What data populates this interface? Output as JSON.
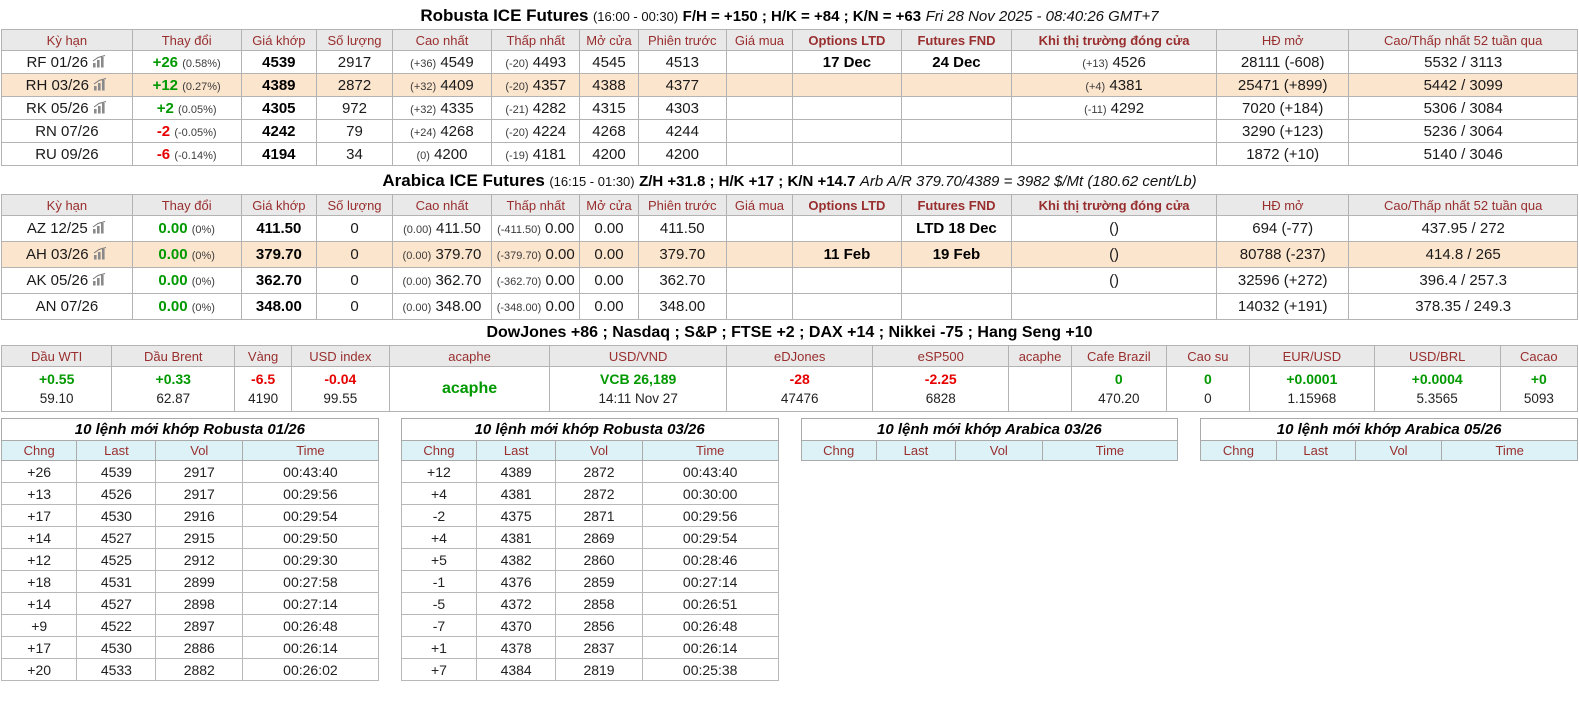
{
  "colors": {
    "positive": "#009900",
    "negative": "#e60000",
    "header_text": "#992e2e",
    "highlight_row": "#fce5cd",
    "trade_header_bg": "#dcf2f7"
  },
  "futures_columns": [
    "Kỳ hạn",
    "Thay đổi",
    "Giá khớp",
    "Số lượng",
    "Cao nhất",
    "Thấp nhất",
    "Mở cửa",
    "Phiên trước",
    "Giá mua",
    "Options LTD",
    "Futures FND",
    "Khi thị trường đóng cửa",
    "HĐ mở",
    "Cao/Thấp nhất 52 tuần qua"
  ],
  "robusta": {
    "title": "Robusta ICE Futures",
    "session": "(16:00 - 00:30)",
    "spread": "F/H = +150 ; H/K = +84 ; K/N = +63",
    "timestamp": "Fri 28 Nov 2025 - 08:40:26 GMT+7",
    "rows": [
      {
        "contract": "RF 01/26",
        "chart": true,
        "chg": "+26",
        "chg_dir": "up",
        "pct": "(0.58%)",
        "last": "4539",
        "vol": "2917",
        "high_d": "(+36)",
        "high": "4549",
        "low_d": "(-20)",
        "low": "4493",
        "open": "4545",
        "prev": "4513",
        "bid": "",
        "opt_ltd": "17 Dec",
        "fut_fnd": "24 Dec",
        "close_d": "(+13)",
        "close_v": "4526",
        "oi": "28111",
        "oi_d": "(-608)",
        "range": "5532 / 3113",
        "hl": false
      },
      {
        "contract": "RH 03/26",
        "chart": true,
        "chg": "+12",
        "chg_dir": "up",
        "pct": "(0.27%)",
        "last": "4389",
        "vol": "2872",
        "high_d": "(+32)",
        "high": "4409",
        "low_d": "(-20)",
        "low": "4357",
        "open": "4388",
        "prev": "4377",
        "bid": "",
        "opt_ltd": "",
        "fut_fnd": "",
        "close_d": "(+4)",
        "close_v": "4381",
        "oi": "25471",
        "oi_d": "(+899)",
        "range": "5442 / 3099",
        "hl": true
      },
      {
        "contract": "RK 05/26",
        "chart": true,
        "chg": "+2",
        "chg_dir": "up",
        "pct": "(0.05%)",
        "last": "4305",
        "vol": "972",
        "high_d": "(+32)",
        "high": "4335",
        "low_d": "(-21)",
        "low": "4282",
        "open": "4315",
        "prev": "4303",
        "bid": "",
        "opt_ltd": "",
        "fut_fnd": "",
        "close_d": "(-11)",
        "close_v": "4292",
        "oi": "7020",
        "oi_d": "(+184)",
        "range": "5306 / 3084",
        "hl": false
      },
      {
        "contract": "RN 07/26",
        "chart": false,
        "chg": "-2",
        "chg_dir": "down",
        "pct": "(-0.05%)",
        "last": "4242",
        "vol": "79",
        "high_d": "(+24)",
        "high": "4268",
        "low_d": "(-20)",
        "low": "4224",
        "open": "4268",
        "prev": "4244",
        "bid": "",
        "opt_ltd": "",
        "fut_fnd": "",
        "close_d": "",
        "close_v": "",
        "oi": "3290",
        "oi_d": "(+123)",
        "range": "5236 / 3064",
        "hl": false
      },
      {
        "contract": "RU 09/26",
        "chart": false,
        "chg": "-6",
        "chg_dir": "down",
        "pct": "(-0.14%)",
        "last": "4194",
        "vol": "34",
        "high_d": "(0)",
        "high": "4200",
        "low_d": "(-19)",
        "low": "4181",
        "open": "4200",
        "prev": "4200",
        "bid": "",
        "opt_ltd": "",
        "fut_fnd": "",
        "close_d": "",
        "close_v": "",
        "oi": "1872",
        "oi_d": "(+10)",
        "range": "5140 / 3046",
        "hl": false
      }
    ]
  },
  "arabica": {
    "title": "Arabica ICE Futures",
    "session": "(16:15 - 01:30)",
    "spread": "Z/H +31.8 ; H/K +17 ; K/N +14.7",
    "note": "Arb A/R 379.70/4389 = 3982 $/Mt (180.62 cent/Lb)",
    "rows": [
      {
        "contract": "AZ 12/25",
        "chart": true,
        "chg": "0.00",
        "chg_dir": "up",
        "pct": "(0%)",
        "last": "411.50",
        "vol": "0",
        "high_d": "(0.00)",
        "high": "411.50",
        "low_d": "(-411.50)",
        "low": "0.00",
        "open": "0.00",
        "prev": "411.50",
        "bid": "",
        "opt_ltd": "",
        "fut_fnd": "LTD 18 Dec",
        "close_d": "",
        "close_v": "()",
        "oi": "694",
        "oi_d": "(-77)",
        "range": "437.95 / 272",
        "hl": false
      },
      {
        "contract": "AH 03/26",
        "chart": true,
        "chg": "0.00",
        "chg_dir": "up",
        "pct": "(0%)",
        "last": "379.70",
        "vol": "0",
        "high_d": "(0.00)",
        "high": "379.70",
        "low_d": "(-379.70)",
        "low": "0.00",
        "open": "0.00",
        "prev": "379.70",
        "bid": "",
        "opt_ltd": "11 Feb",
        "fut_fnd": "19 Feb",
        "close_d": "",
        "close_v": "()",
        "oi": "80788",
        "oi_d": "(-237)",
        "range": "414.8 / 265",
        "hl": true
      },
      {
        "contract": "AK 05/26",
        "chart": true,
        "chg": "0.00",
        "chg_dir": "up",
        "pct": "(0%)",
        "last": "362.70",
        "vol": "0",
        "high_d": "(0.00)",
        "high": "362.70",
        "low_d": "(-362.70)",
        "low": "0.00",
        "open": "0.00",
        "prev": "362.70",
        "bid": "",
        "opt_ltd": "",
        "fut_fnd": "",
        "close_d": "",
        "close_v": "()",
        "oi": "32596",
        "oi_d": "(+272)",
        "range": "396.4 / 257.3",
        "hl": false
      },
      {
        "contract": "AN 07/26",
        "chart": false,
        "chg": "0.00",
        "chg_dir": "up",
        "pct": "(0%)",
        "last": "348.00",
        "vol": "0",
        "high_d": "(0.00)",
        "high": "348.00",
        "low_d": "(-348.00)",
        "low": "0.00",
        "open": "0.00",
        "prev": "348.00",
        "bid": "",
        "opt_ltd": "",
        "fut_fnd": "",
        "close_d": "",
        "close_v": "",
        "oi": "14032",
        "oi_d": "(+191)",
        "range": "378.35 / 249.3",
        "hl": false
      }
    ]
  },
  "world_indices": "DowJones +86 ; Nasdaq ; S&P ; FTSE +2 ; DAX +14 ; Nikkei -75 ; Hang Seng +10",
  "indicators": [
    {
      "label": "Dầu WTI",
      "chg": "+0.55",
      "dir": "up",
      "val": "59.10"
    },
    {
      "label": "Dầu Brent",
      "chg": "+0.33",
      "dir": "up",
      "val": "62.87"
    },
    {
      "label": "Vàng",
      "chg": "-6.5",
      "dir": "down",
      "val": "4190"
    },
    {
      "label": "USD index",
      "chg": "-0.04",
      "dir": "down",
      "val": "99.55"
    },
    {
      "label": "acaphe",
      "single": "acaphe",
      "dir": "up"
    },
    {
      "label": "USD/VND",
      "chg": "VCB 26,189",
      "dir": "up",
      "val": "14:11 Nov 27"
    },
    {
      "label": "eDJones",
      "chg": "-28",
      "dir": "down",
      "val": "47476"
    },
    {
      "label": "eSP500",
      "chg": "-2.25",
      "dir": "down",
      "val": "6828"
    },
    {
      "label": "acaphe",
      "chg": "",
      "dir": "up",
      "val": ""
    },
    {
      "label": "Cafe Brazil",
      "chg": "0",
      "dir": "up",
      "val": "470.20"
    },
    {
      "label": "Cao su",
      "chg": "0",
      "dir": "up",
      "val": "0"
    },
    {
      "label": "EUR/USD",
      "chg": "+0.0001",
      "dir": "up",
      "val": "1.15968"
    },
    {
      "label": "USD/BRL",
      "chg": "+0.0004",
      "dir": "up",
      "val": "5.3565"
    },
    {
      "label": "Cacao",
      "chg": "+0",
      "dir": "up",
      "val": "5093"
    }
  ],
  "trade_tables": [
    {
      "title": "10 lệnh mới khớp Robusta 01/26",
      "columns": [
        "Chng",
        "Last",
        "Vol",
        "Time"
      ],
      "rows": [
        [
          "+26",
          "4539",
          "2917",
          "00:43:40"
        ],
        [
          "+13",
          "4526",
          "2917",
          "00:29:56"
        ],
        [
          "+17",
          "4530",
          "2916",
          "00:29:54"
        ],
        [
          "+14",
          "4527",
          "2915",
          "00:29:50"
        ],
        [
          "+12",
          "4525",
          "2912",
          "00:29:30"
        ],
        [
          "+18",
          "4531",
          "2899",
          "00:27:58"
        ],
        [
          "+14",
          "4527",
          "2898",
          "00:27:14"
        ],
        [
          "+9",
          "4522",
          "2897",
          "00:26:48"
        ],
        [
          "+17",
          "4530",
          "2886",
          "00:26:14"
        ],
        [
          "+20",
          "4533",
          "2882",
          "00:26:02"
        ]
      ]
    },
    {
      "title": "10 lệnh mới khớp Robusta 03/26",
      "columns": [
        "Chng",
        "Last",
        "Vol",
        "Time"
      ],
      "rows": [
        [
          "+12",
          "4389",
          "2872",
          "00:43:40"
        ],
        [
          "+4",
          "4381",
          "2872",
          "00:30:00"
        ],
        [
          "-2",
          "4375",
          "2871",
          "00:29:56"
        ],
        [
          "+4",
          "4381",
          "2869",
          "00:29:54"
        ],
        [
          "+5",
          "4382",
          "2860",
          "00:28:46"
        ],
        [
          "-1",
          "4376",
          "2859",
          "00:27:14"
        ],
        [
          "-5",
          "4372",
          "2858",
          "00:26:51"
        ],
        [
          "-7",
          "4370",
          "2856",
          "00:26:48"
        ],
        [
          "+1",
          "4378",
          "2837",
          "00:26:14"
        ],
        [
          "+7",
          "4384",
          "2819",
          "00:25:38"
        ]
      ]
    },
    {
      "title": "10 lệnh mới khớp Arabica 03/26",
      "columns": [
        "Chng",
        "Last",
        "Vol",
        "Time"
      ],
      "rows": []
    },
    {
      "title": "10 lệnh mới khớp Arabica 05/26",
      "columns": [
        "Chng",
        "Last",
        "Vol",
        "Time"
      ],
      "rows": []
    }
  ]
}
